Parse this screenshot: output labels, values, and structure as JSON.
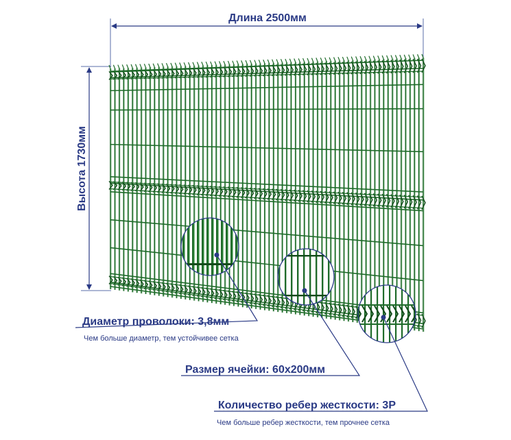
{
  "colors": {
    "wire": "#1f6b2a",
    "wire_dark": "#124a1a",
    "wire_light": "#3e9a47",
    "accent": "#2a3a85",
    "dimension_line": "#5a6ea8"
  },
  "dimensions": {
    "length_label": "Длина 2500мм",
    "height_label": "Высота 1730мм"
  },
  "callouts": {
    "wire_diameter": {
      "title": "Диаметр проволоки: 3,8мм",
      "subtitle": "Чем больше диаметр, тем устойчивее сетка"
    },
    "cell_size": {
      "title": "Размер ячейки: 60х200мм"
    },
    "ribs": {
      "title": "Количество ребер жесткости: 3Р",
      "subtitle": "Чем больше ребер жесткости, тем прочнее сетка"
    }
  }
}
